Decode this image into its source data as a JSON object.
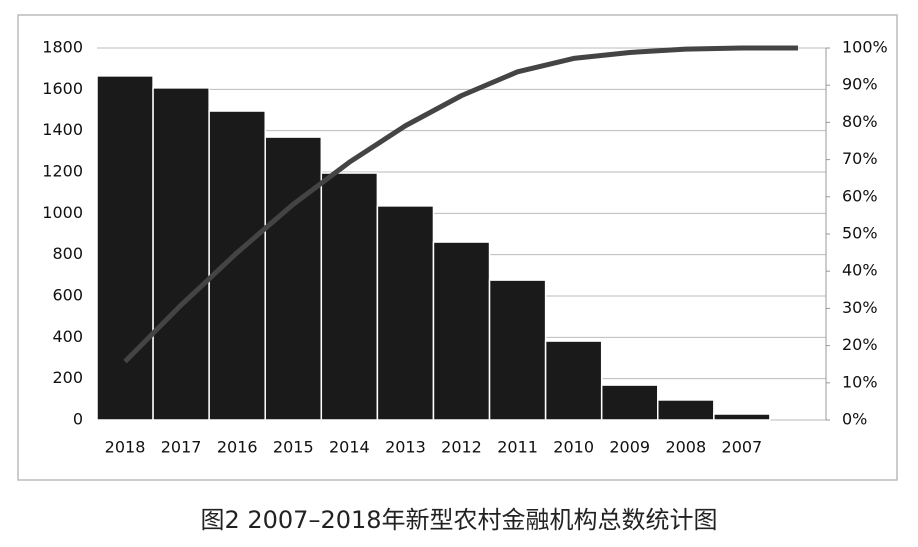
{
  "chart_data": {
    "type": "pareto",
    "caption": "图2 2007–2018年新型农村金融机构总数统计图",
    "categories": [
      "2018",
      "2017",
      "2016",
      "2015",
      "2014",
      "2013",
      "2012",
      "2011",
      "2010",
      "2009",
      "2008",
      "2007",
      null
    ],
    "series": [
      {
        "type": "bar",
        "color": "#1a1a1a",
        "values": [
          1665,
          1607,
          1495,
          1369,
          1195,
          1036,
          861,
          677,
          382,
          169,
          97,
          29,
          null
        ]
      },
      {
        "type": "line",
        "axis": "y2",
        "color": "#444444",
        "values": [
          15.7,
          30.9,
          45.0,
          58.0,
          69.3,
          79.1,
          87.2,
          93.6,
          97.2,
          98.8,
          99.7,
          100,
          100
        ]
      }
    ],
    "ylim": [
      0,
      1800
    ],
    "yticks": [
      0,
      200,
      400,
      600,
      800,
      1000,
      1200,
      1400,
      1600,
      1800
    ],
    "y2lim": [
      0,
      100
    ],
    "y2ticks": [
      {
        "value": 0,
        "label": "0%"
      },
      {
        "value": 10,
        "label": "10%"
      },
      {
        "value": 20,
        "label": "20%"
      },
      {
        "value": 30,
        "label": "30%"
      },
      {
        "value": 40,
        "label": "40%"
      },
      {
        "value": 50,
        "label": "50%"
      },
      {
        "value": 60,
        "label": "60%"
      },
      {
        "value": 70,
        "label": "70%"
      },
      {
        "value": 80,
        "label": "80%"
      },
      {
        "value": 90,
        "label": "90%"
      },
      {
        "value": 100,
        "label": "100%"
      }
    ],
    "grid": true
  }
}
